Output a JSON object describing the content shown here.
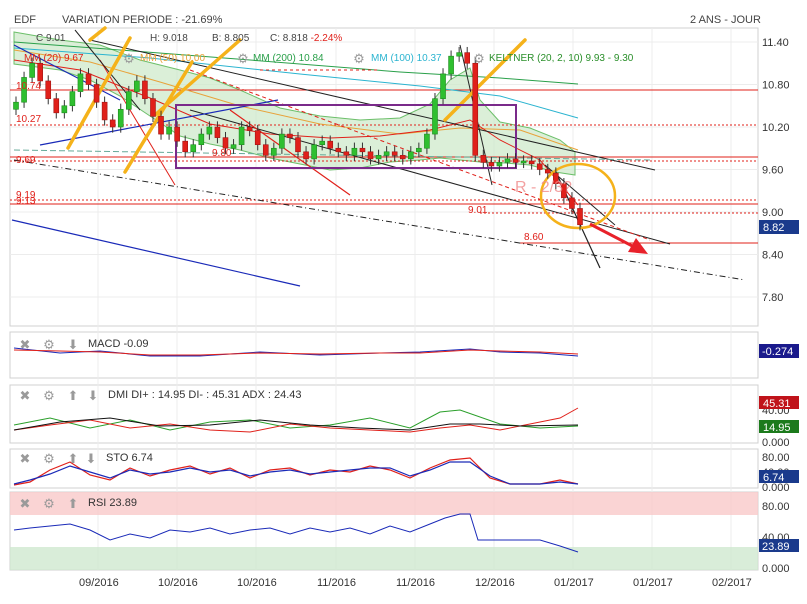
{
  "header": {
    "ticker": "EDF",
    "variation_label": "VARIATION PERIODE : ",
    "variation_value": "-21.69%",
    "period": "2 ANS - JOUR"
  },
  "ohlc": {
    "close_prefix": "C",
    "close_value": "9.01",
    "high_label": "H: 9.018",
    "low_label": "B: 8.805",
    "last_label": "C: 8.818",
    "last_change": "-2.24%"
  },
  "overlays": [
    {
      "label": "MM (20)",
      "value": "9.67",
      "color": "#e0201a"
    },
    {
      "label": "MM (50)",
      "value": "10.00",
      "color": "#e8a23a"
    },
    {
      "label": "MM (200)",
      "value": "10.84",
      "color": "#2aa04a"
    },
    {
      "label": "MM (100)",
      "value": "10.37",
      "color": "#2bb4d0"
    },
    {
      "label": "KELTNER (20, 2, 10)",
      "value": "9.93 - 9.30",
      "color": "#2a8f2a"
    }
  ],
  "annotations": {
    "resistance_1": "10.74",
    "resistance_2": "10.27",
    "support_969": "9.69",
    "rect_level": "9.80",
    "support_919": "9.19",
    "support_913": "9.13",
    "level_901": "9.01",
    "level_860": "8.60",
    "pattern_label": "R - 2/3?"
  },
  "price_axis": {
    "ticks": [
      "11.40",
      "10.80",
      "10.20",
      "9.60",
      "9.00",
      "8.40",
      "7.80"
    ],
    "current": "8.82",
    "current_color": "#1a3a8c"
  },
  "x_axis": {
    "ticks": [
      "09/2016",
      "10/2016",
      "10/2016",
      "11/2016",
      "11/2016",
      "12/2016",
      "01/2017",
      "01/2017",
      "02/2017"
    ]
  },
  "indicators": {
    "macd": {
      "name": "MACD",
      "value": "-0.09",
      "badge": "-0.274",
      "badge_color": "#1a1a8c"
    },
    "dmi": {
      "name": "DMI",
      "text": "DI+ : 14.95 DI- : 45.31 ADX : 24.43",
      "ticks": [
        "40.00",
        "20.00",
        "0.000"
      ],
      "badge_top": "45.31",
      "badge_top_color": "#c0131a",
      "badge_bottom": "14.95",
      "badge_bottom_color": "#1c7a1c"
    },
    "sto": {
      "name": "STO",
      "value": "6.74",
      "ticks": [
        "80.00",
        "40.00",
        "0.000"
      ],
      "badge": "6.74",
      "badge_color": "#1a3a8c"
    },
    "rsi": {
      "name": "RSI",
      "value": "23.89",
      "ticks": [
        "80.00",
        "40.00",
        "0.000"
      ],
      "badge": "23.89",
      "badge_color": "#1a3a8c"
    }
  },
  "chart_data": {
    "type": "candlestick",
    "title": "EDF",
    "x_start": "2016-08-25",
    "x_end": "2017-01-04",
    "ylim": [
      7.5,
      11.55
    ],
    "close_series": [
      10.55,
      10.9,
      11.1,
      10.85,
      10.6,
      10.4,
      10.5,
      10.7,
      10.95,
      10.8,
      10.55,
      10.3,
      10.2,
      10.45,
      10.7,
      10.85,
      10.6,
      10.35,
      10.1,
      10.2,
      10.0,
      9.85,
      9.95,
      10.1,
      10.2,
      10.05,
      9.9,
      9.95,
      10.2,
      10.15,
      9.95,
      9.8,
      9.9,
      10.1,
      10.05,
      9.85,
      9.75,
      9.95,
      10.0,
      9.9,
      9.85,
      9.8,
      9.9,
      9.85,
      9.75,
      9.8,
      9.85,
      9.8,
      9.75,
      9.85,
      9.9,
      10.1,
      10.6,
      10.95,
      11.2,
      11.25,
      11.1,
      9.8,
      9.7,
      9.65,
      9.7,
      9.75,
      9.7,
      9.72,
      9.68,
      9.6,
      9.55,
      9.4,
      9.2,
      9.05,
      8.82
    ],
    "levels": [
      10.74,
      10.27,
      9.69,
      9.19,
      9.13,
      9.01,
      8.6
    ],
    "last": 8.82
  }
}
